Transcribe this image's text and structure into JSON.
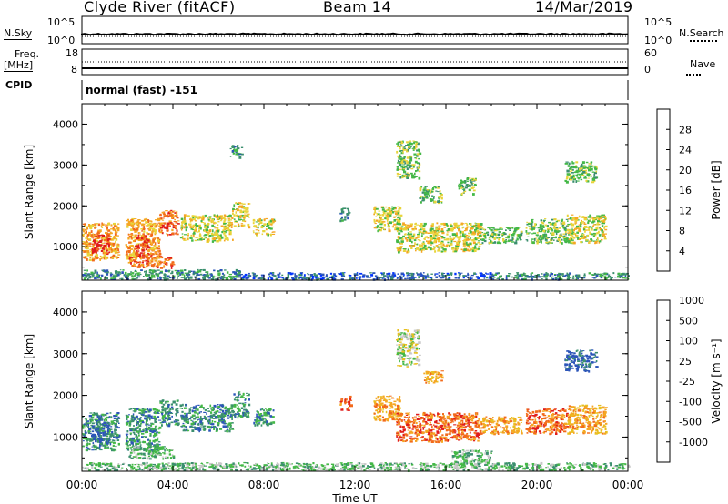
{
  "header": {
    "station": "Clyde River (fitACF)",
    "beam": "Beam 14",
    "date": "14/Mar/2019"
  },
  "noise_panel": {
    "left_label": "N.Sky",
    "left_ticks": [
      "10^5",
      "10^0"
    ],
    "right_ticks": [
      "10^5",
      "10^0"
    ],
    "right_label": "N.Search"
  },
  "freq_panel": {
    "left_label_1": "Freq.",
    "left_label_2": "[MHz]",
    "left_ticks": [
      "18",
      "8"
    ],
    "right_ticks": [
      "60",
      "0"
    ],
    "right_label": "Nave"
  },
  "cpid": {
    "label": "CPID",
    "value": "normal (fast) -151"
  },
  "chart_data": [
    {
      "type": "heatmap",
      "ylabel": "Slant Range [km]",
      "xlabel": "Time UT",
      "x_ticks": [
        "00:00",
        "04:00",
        "08:00",
        "12:00",
        "16:00",
        "20:00",
        "00:00"
      ],
      "y_ticks": [
        1000,
        2000,
        3000,
        4000
      ],
      "ylim": [
        180,
        4500
      ],
      "colorbar": {
        "label": "Power [dB]",
        "ticks": [
          "4",
          "8",
          "12",
          "16",
          "20",
          "24",
          "28"
        ],
        "colors": [
          "#0033ff",
          "#2c55b8",
          "#3b8f6e",
          "#44b847",
          "#e8d43a",
          "#f5a623",
          "#f26a1b",
          "#e01c1c"
        ]
      },
      "scatter_regions": [
        {
          "t0": 0.0,
          "t1": 1.6,
          "r0": 700,
          "r1": 1600,
          "level": 5
        },
        {
          "t0": 0.4,
          "t1": 1.2,
          "r0": 850,
          "r1": 1300,
          "level": 7
        },
        {
          "t0": 1.9,
          "t1": 3.4,
          "r0": 700,
          "r1": 1700,
          "level": 5
        },
        {
          "t0": 2.3,
          "t1": 2.9,
          "r0": 750,
          "r1": 1300,
          "level": 7
        },
        {
          "t0": 3.4,
          "t1": 4.2,
          "r0": 1300,
          "r1": 1900,
          "level": 6
        },
        {
          "t0": 4.3,
          "t1": 6.6,
          "r0": 1150,
          "r1": 1800,
          "level": 4
        },
        {
          "t0": 6.6,
          "t1": 7.3,
          "r0": 1500,
          "r1": 2100,
          "level": 4
        },
        {
          "t0": 7.5,
          "t1": 8.4,
          "r0": 1300,
          "r1": 1700,
          "level": 4
        },
        {
          "t0": 2.0,
          "t1": 4.0,
          "r0": 500,
          "r1": 800,
          "level": 6
        },
        {
          "t0": 0.0,
          "t1": 7.0,
          "r0": 220,
          "r1": 450,
          "level": 2
        },
        {
          "t0": 7.0,
          "t1": 18.0,
          "r0": 220,
          "r1": 380,
          "level": 1
        },
        {
          "t0": 18.0,
          "t1": 24.0,
          "r0": 220,
          "r1": 380,
          "level": 2
        },
        {
          "t0": 11.3,
          "t1": 11.7,
          "r0": 1650,
          "r1": 2000,
          "level": 2
        },
        {
          "t0": 12.8,
          "t1": 14.0,
          "r0": 1400,
          "r1": 2000,
          "level": 4
        },
        {
          "t0": 13.8,
          "t1": 17.5,
          "r0": 900,
          "r1": 1600,
          "level": 4
        },
        {
          "t0": 17.5,
          "t1": 19.3,
          "r0": 1100,
          "r1": 1500,
          "level": 3
        },
        {
          "t0": 19.5,
          "t1": 21.3,
          "r0": 1100,
          "r1": 1700,
          "level": 3
        },
        {
          "t0": 21.3,
          "t1": 23.0,
          "r0": 1100,
          "r1": 1800,
          "level": 4
        },
        {
          "t0": 14.8,
          "t1": 15.8,
          "r0": 2100,
          "r1": 2500,
          "level": 3
        },
        {
          "t0": 16.5,
          "t1": 17.3,
          "r0": 2300,
          "r1": 2700,
          "level": 3
        },
        {
          "t0": 21.2,
          "t1": 22.6,
          "r0": 2600,
          "r1": 3100,
          "level": 3
        },
        {
          "t0": 13.8,
          "t1": 14.8,
          "r0": 2700,
          "r1": 3600,
          "level": 3
        },
        {
          "t0": 6.5,
          "t1": 7.0,
          "r0": 3200,
          "r1": 3500,
          "level": 2
        }
      ]
    },
    {
      "type": "heatmap",
      "ylabel": "Slant Range [km]",
      "xlabel": "Time UT",
      "x_ticks": [
        "00:00",
        "04:00",
        "08:00",
        "12:00",
        "16:00",
        "20:00",
        "00:00"
      ],
      "y_ticks": [
        1000,
        2000,
        3000,
        4000
      ],
      "ylim": [
        180,
        4500
      ],
      "colorbar": {
        "label": "Velocity [m s⁻¹]",
        "ticks": [
          "-1000",
          "-500",
          "-100",
          "-25",
          "25",
          "100",
          "500",
          "1000"
        ],
        "colors": [
          "#e01c1c",
          "#f26a1b",
          "#f5a623",
          "#e8c020",
          "#c8c8c8",
          "#44b847",
          "#3b8f6e",
          "#2c55b8"
        ]
      },
      "scatter_regions": [
        {
          "t0": 0.0,
          "t1": 1.6,
          "r0": 700,
          "r1": 1600,
          "level": 6
        },
        {
          "t0": 0.4,
          "t1": 1.2,
          "r0": 900,
          "r1": 1300,
          "level": 7
        },
        {
          "t0": 1.9,
          "t1": 3.4,
          "r0": 700,
          "r1": 1700,
          "level": 6
        },
        {
          "t0": 3.4,
          "t1": 4.2,
          "r0": 1300,
          "r1": 1900,
          "level": 6
        },
        {
          "t0": 4.3,
          "t1": 6.6,
          "r0": 1150,
          "r1": 1800,
          "level": 6
        },
        {
          "t0": 6.6,
          "t1": 7.3,
          "r0": 1500,
          "r1": 2100,
          "level": 6
        },
        {
          "t0": 7.5,
          "t1": 8.4,
          "r0": 1300,
          "r1": 1700,
          "level": 6
        },
        {
          "t0": 2.0,
          "t1": 4.0,
          "r0": 500,
          "r1": 800,
          "level": 5
        },
        {
          "t0": 0.0,
          "t1": 24.0,
          "r0": 220,
          "r1": 400,
          "level": 5
        },
        {
          "t0": 11.3,
          "t1": 11.8,
          "r0": 1650,
          "r1": 2000,
          "level": 1
        },
        {
          "t0": 12.8,
          "t1": 14.0,
          "r0": 1400,
          "r1": 2000,
          "level": 2
        },
        {
          "t0": 13.8,
          "t1": 17.5,
          "r0": 900,
          "r1": 1600,
          "level": 1
        },
        {
          "t0": 17.5,
          "t1": 19.3,
          "r0": 1100,
          "r1": 1500,
          "level": 2
        },
        {
          "t0": 19.5,
          "t1": 21.3,
          "r0": 1100,
          "r1": 1700,
          "level": 1
        },
        {
          "t0": 21.3,
          "t1": 23.0,
          "r0": 1100,
          "r1": 1800,
          "level": 2
        },
        {
          "t0": 15.0,
          "t1": 15.8,
          "r0": 2300,
          "r1": 2600,
          "level": 2
        },
        {
          "t0": 21.2,
          "t1": 22.6,
          "r0": 2600,
          "r1": 3100,
          "level": 7
        },
        {
          "t0": 13.8,
          "t1": 14.8,
          "r0": 2700,
          "r1": 3600,
          "level": 4
        },
        {
          "t0": 16.2,
          "t1": 18.0,
          "r0": 350,
          "r1": 700,
          "level": 5
        }
      ]
    }
  ]
}
